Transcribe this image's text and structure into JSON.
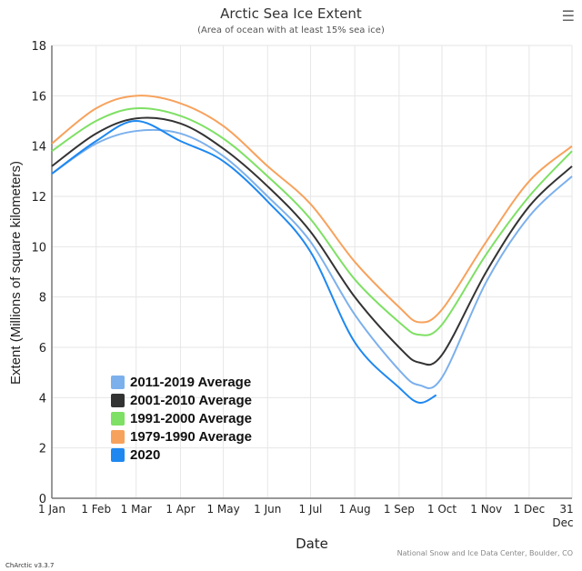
{
  "header": {
    "title": "Arctic Sea Ice Extent",
    "subtitle": "(Area of ocean with at least 15% sea ice)",
    "menu_icon": "hamburger-menu-icon"
  },
  "footer": {
    "credit": "National Snow and Ice Data Center, Boulder, CO",
    "version": "ChArctic v3.3.7"
  },
  "chart_data": {
    "type": "line",
    "title": "Arctic Sea Ice Extent",
    "subtitle": "(Area of ocean with at least 15% sea ice)",
    "xlabel": "Date",
    "ylabel": "Extent (Millions of square kilometers)",
    "ylim": [
      0,
      18
    ],
    "yticks": [
      0,
      2,
      4,
      6,
      8,
      10,
      12,
      14,
      16,
      18
    ],
    "xticks": [
      "1 Jan",
      "1 Feb",
      "1 Mar",
      "1 Apr",
      "1 May",
      "1 Jun",
      "1 Jul",
      "1 Aug",
      "1 Sep",
      "1 Oct",
      "1 Nov",
      "1 Dec",
      "31 Dec"
    ],
    "grid": true,
    "legend_position": "bottom-left",
    "x": [
      "01-01",
      "02-01",
      "03-01",
      "04-01",
      "05-01",
      "06-01",
      "07-01",
      "08-01",
      "09-01",
      "09-15",
      "10-01",
      "11-01",
      "12-01",
      "12-31"
    ],
    "series": [
      {
        "name": "2011-2019 Average",
        "color": "#7cb0ec",
        "values": [
          12.9,
          14.1,
          14.6,
          14.5,
          13.6,
          12.0,
          10.2,
          7.3,
          5.1,
          4.5,
          4.8,
          8.6,
          11.2,
          12.8
        ]
      },
      {
        "name": "2001-2010 Average",
        "color": "#333333",
        "values": [
          13.2,
          14.5,
          15.1,
          14.9,
          13.9,
          12.4,
          10.6,
          8.0,
          6.0,
          5.4,
          5.7,
          9.0,
          11.6,
          13.2
        ]
      },
      {
        "name": "1991-2000 Average",
        "color": "#7ee064",
        "values": [
          13.8,
          15.0,
          15.5,
          15.2,
          14.3,
          12.8,
          11.1,
          8.7,
          7.0,
          6.5,
          6.9,
          9.7,
          12.0,
          13.8
        ]
      },
      {
        "name": "1979-1990 Average",
        "color": "#f7a25c",
        "values": [
          14.1,
          15.5,
          16.0,
          15.7,
          14.8,
          13.2,
          11.7,
          9.4,
          7.6,
          7.0,
          7.5,
          10.2,
          12.6,
          14.0
        ]
      },
      {
        "name": "2020",
        "color": "#1e88f0",
        "values": [
          12.9,
          14.2,
          15.0,
          14.2,
          13.4,
          11.8,
          9.8,
          6.2,
          4.4,
          3.8,
          null,
          null,
          null,
          null
        ],
        "extra_end": {
          "x": "09-27",
          "value": 4.1
        }
      }
    ]
  }
}
